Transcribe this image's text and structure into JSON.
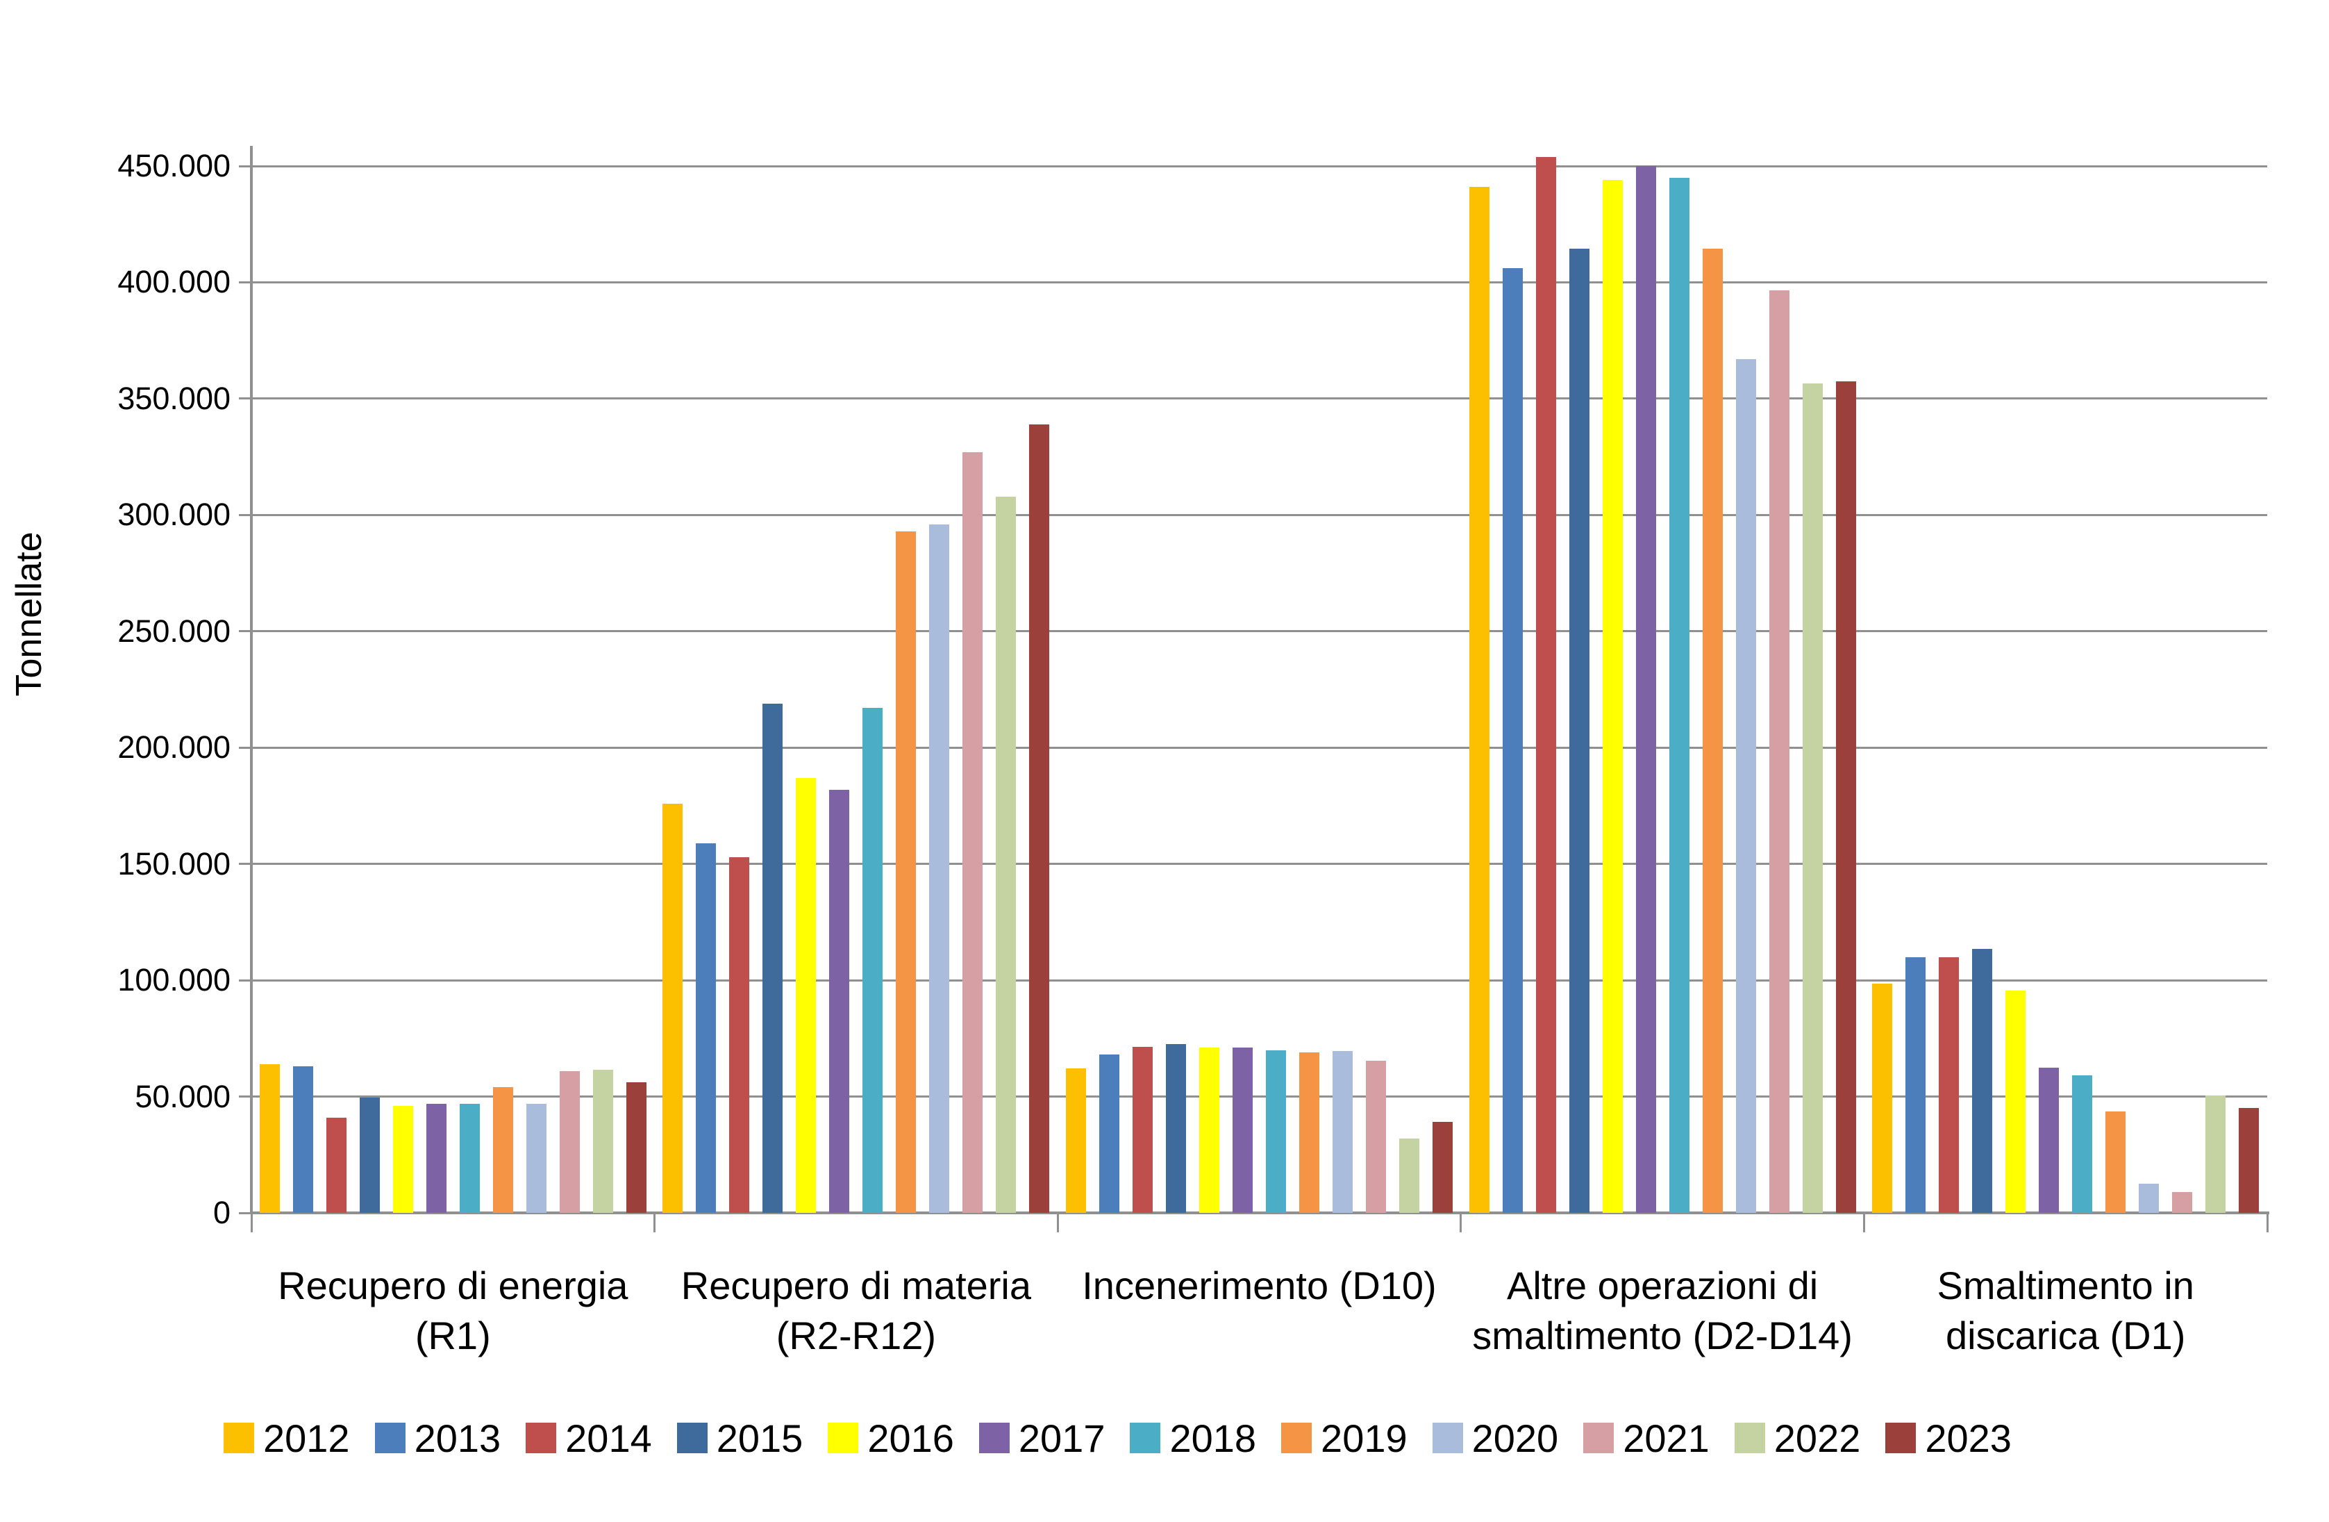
{
  "chart_data": {
    "type": "bar",
    "title": "",
    "xlabel": "",
    "ylabel": "Tonnellate",
    "ylim": [
      0,
      450000
    ],
    "grid": true,
    "legend_position": "bottom",
    "ytick_labels": [
      "0",
      "50.000",
      "100.000",
      "150.000",
      "200.000",
      "250.000",
      "300.000",
      "350.000",
      "400.000",
      "450.000"
    ],
    "categories": [
      "Recupero di energia (R1)",
      "Recupero di materia (R2-R12)",
      "Incenerimento (D10)",
      "Altre operazioni di smaltimento (D2-D14)",
      "Smaltimento in discarica (D1)"
    ],
    "category_label_lines": [
      [
        "Recupero di energia",
        "(R1)"
      ],
      [
        "Recupero di materia",
        "(R2-R12)"
      ],
      [
        "Incenerimento (D10)"
      ],
      [
        "Altre operazioni di",
        "smaltimento (D2-D14)"
      ],
      [
        "Smaltimento in",
        "discarica (D1)"
      ]
    ],
    "series": [
      {
        "name": "2012",
        "color": "#FDC000",
        "values": [
          64000,
          176000,
          62000,
          441000,
          98500
        ]
      },
      {
        "name": "2013",
        "color": "#4C7EBC",
        "values": [
          63000,
          159000,
          68000,
          406000,
          110000
        ]
      },
      {
        "name": "2014",
        "color": "#BF4F4C",
        "values": [
          41000,
          153000,
          71500,
          454000,
          110000
        ]
      },
      {
        "name": "2015",
        "color": "#3E6A9C",
        "values": [
          49500,
          219000,
          72500,
          414500,
          113500
        ]
      },
      {
        "name": "2016",
        "color": "#FFFF00",
        "values": [
          46000,
          187000,
          71000,
          444000,
          95500
        ]
      },
      {
        "name": "2017",
        "color": "#7D63A5",
        "values": [
          47000,
          182000,
          71000,
          450000,
          62500
        ]
      },
      {
        "name": "2018",
        "color": "#4BADC6",
        "values": [
          47000,
          217000,
          70000,
          445000,
          59000
        ]
      },
      {
        "name": "2019",
        "color": "#F69445",
        "values": [
          54000,
          293000,
          69000,
          414500,
          43500
        ]
      },
      {
        "name": "2020",
        "color": "#A9BCDB",
        "values": [
          47000,
          296000,
          69500,
          367000,
          12500
        ]
      },
      {
        "name": "2021",
        "color": "#D69FA4",
        "values": [
          61000,
          327000,
          65500,
          396500,
          9000
        ]
      },
      {
        "name": "2022",
        "color": "#C5D3A3",
        "values": [
          61500,
          308000,
          32000,
          356500,
          50500
        ]
      },
      {
        "name": "2023",
        "color": "#9C403B",
        "values": [
          56000,
          339000,
          39000,
          357500,
          45000
        ]
      }
    ],
    "axis_color": "#909090"
  }
}
